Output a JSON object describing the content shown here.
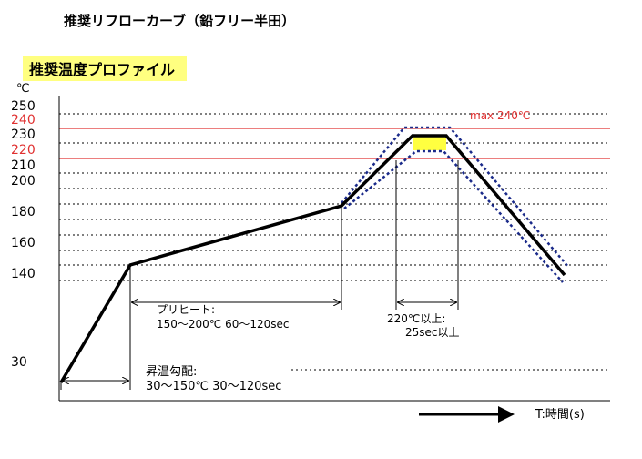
{
  "header": {
    "title": "推奨リフローカーブ（鉛フリー半田）"
  },
  "panel": {
    "title": "推奨温度プロファイル",
    "unit": "℃",
    "y_labels": [
      "250",
      "240",
      "230",
      "220",
      "210",
      "200",
      "180",
      "160",
      "140",
      "30"
    ]
  },
  "annotations": {
    "max": "max  240℃",
    "preheat_label": "プリヒート:",
    "preheat_detail": "150～200℃  60～120sec",
    "above_label": "220℃以上:",
    "above_detail": "25sec以上",
    "ramp_label": "昇温勾配:",
    "ramp_detail": "30～150℃  30～120sec"
  },
  "x_axis_label": "T:時間(s)"
}
